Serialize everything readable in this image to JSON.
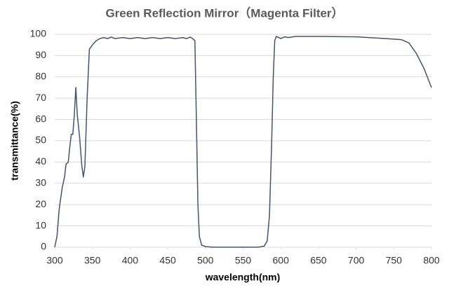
{
  "chart_data": {
    "type": "line",
    "title": "Green Reflection Mirror（Magenta Filter）",
    "x_label": "wavelength(nm)",
    "y_label": "transmittance(%)",
    "x": [
      300,
      303,
      306,
      310,
      313,
      315,
      318,
      320,
      322,
      324,
      326,
      328,
      330,
      333,
      336,
      338,
      340,
      343,
      346,
      350,
      355,
      360,
      365,
      370,
      375,
      380,
      390,
      400,
      410,
      420,
      430,
      440,
      450,
      460,
      470,
      475,
      480,
      483,
      486,
      488,
      490,
      492,
      495,
      500,
      510,
      550,
      570,
      578,
      582,
      585,
      588,
      590,
      592,
      594,
      597,
      600,
      605,
      610,
      620,
      650,
      700,
      740,
      760,
      770,
      780,
      790,
      800
    ],
    "values": [
      0,
      5,
      18,
      28,
      33,
      39,
      40,
      47,
      53,
      53,
      62,
      75,
      62,
      52,
      38,
      33,
      38,
      70,
      93,
      95,
      97,
      98,
      98.5,
      98,
      98.7,
      98,
      98.5,
      98,
      98.5,
      98,
      98.5,
      98,
      98.5,
      98,
      98.5,
      98,
      98.7,
      98,
      97,
      60,
      20,
      5,
      1,
      0.3,
      0,
      0,
      0,
      0.5,
      3,
      15,
      50,
      80,
      97,
      99,
      98.5,
      98,
      98.8,
      98.5,
      99,
      99,
      98.8,
      98,
      97.5,
      96,
      91,
      84,
      75
    ],
    "color": "#44546a",
    "xlim": [
      300,
      800
    ],
    "xticks": [
      300,
      350,
      400,
      450,
      500,
      550,
      600,
      650,
      700,
      750,
      800
    ],
    "ylim": [
      0,
      100
    ],
    "yticks": [
      0,
      10,
      20,
      30,
      40,
      50,
      60,
      70,
      80,
      90,
      100
    ],
    "grid": true
  }
}
